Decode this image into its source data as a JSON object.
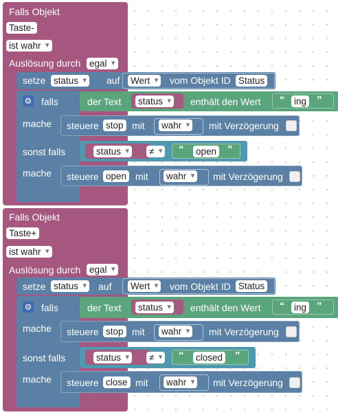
{
  "blocks": [
    {
      "header": "Falls Objekt",
      "object": "Taste-",
      "condition": "ist wahr",
      "trigger_label": "Auslösung durch",
      "trigger_value": "egal",
      "set": {
        "label": "setze",
        "var": "status",
        "to": "auf",
        "what": "Wert",
        "from": "vom Objekt ID",
        "id": "Status"
      },
      "if_label": "falls",
      "text_label": "der Text",
      "text_var": "status",
      "contains_label": "enthält den Wert",
      "contains_value": "ing",
      "do_label": "mache",
      "action1": {
        "label": "steuere",
        "target": "stop",
        "with": "mit",
        "value": "wahr",
        "delay": "mit Verzögerung"
      },
      "elseif_label": "sonst falls",
      "compare_var": "status",
      "operator": "≠",
      "compare_value": "open",
      "do2_label": "mache",
      "action2": {
        "label": "steuere",
        "target": "open",
        "with": "mit",
        "value": "wahr",
        "delay": "mit Verzögerung"
      }
    },
    {
      "header": "Falls Objekt",
      "object": "Taste+",
      "condition": "ist wahr",
      "trigger_label": "Auslösung durch",
      "trigger_value": "egal",
      "set": {
        "label": "setze",
        "var": "status",
        "to": "auf",
        "what": "Wert",
        "from": "vom Objekt ID",
        "id": "Status"
      },
      "if_label": "falls",
      "text_label": "der Text",
      "text_var": "status",
      "contains_label": "enthält den Wert",
      "contains_value": "ing",
      "do_label": "mache",
      "action1": {
        "label": "steuere",
        "target": "stop",
        "with": "mit",
        "value": "wahr",
        "delay": "mit Verzögerung"
      },
      "elseif_label": "sonst falls",
      "compare_var": "status",
      "operator": "≠",
      "compare_value": "closed",
      "do2_label": "mache",
      "action2": {
        "label": "steuere",
        "target": "close",
        "with": "mit",
        "value": "wahr",
        "delay": "mit Verzögerung"
      }
    }
  ],
  "colors": {
    "event": "#a5577f",
    "flow": "#5b80a5",
    "logic": "#4f98b0",
    "text": "#5ba57c",
    "variable": "#a55b80"
  },
  "icons": {
    "gear": "gear-icon",
    "quote_open": "quote-open-icon",
    "quote_close": "quote-close-icon",
    "checkbox": "checkbox-icon"
  }
}
